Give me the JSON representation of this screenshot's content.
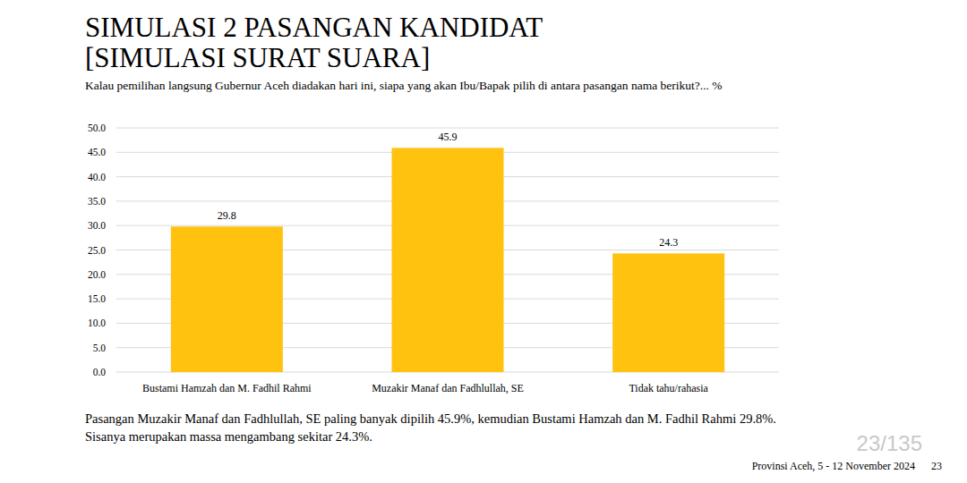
{
  "chart_data": {
    "type": "bar",
    "title": "SIMULASI 2 PASANGAN KANDIDAT",
    "subtitle": "[SIMULASI SURAT SUARA]",
    "annotations": [
      "Kalau pemilihan langsung Gubernur Aceh diadakan hari ini, siapa yang akan Ibu/Bapak pilih di antara pasangan nama berikut?... %",
      "Pasangan Muzakir Manaf dan Fadhlullah, SE paling banyak dipilih 45.9%, kemudian Bustami Hamzah dan M. Fadhil Rahmi 29.8%. Sisanya merupakan massa mengambang sekitar 24.3%.",
      "Provinsi Aceh, 5 - 12 November 2024",
      "23",
      "23/135"
    ],
    "categories": [
      "Bustami Hamzah dan M. Fadhil Rahmi",
      "Muzakir Manaf dan Fadhlullah, SE",
      "Tidak tahu/rahasia"
    ],
    "values": [
      29.8,
      45.9,
      24.3
    ],
    "color": "#ffc20e",
    "ylim": [
      0,
      50
    ],
    "yticks": [
      {
        "value": 0,
        "label": "0.0"
      },
      {
        "value": 5,
        "label": "5.0"
      },
      {
        "value": 10,
        "label": "10.0"
      },
      {
        "value": 15,
        "label": "15.0"
      },
      {
        "value": 20,
        "label": "20.0"
      },
      {
        "value": 25,
        "label": "25.0"
      },
      {
        "value": 30,
        "label": "30.0"
      },
      {
        "value": 35,
        "label": "35.0"
      },
      {
        "value": 40,
        "label": "40.0"
      },
      {
        "value": 45,
        "label": "45.0"
      },
      {
        "value": 50,
        "label": "50.0"
      }
    ],
    "grid": true,
    "data_labels": true
  }
}
